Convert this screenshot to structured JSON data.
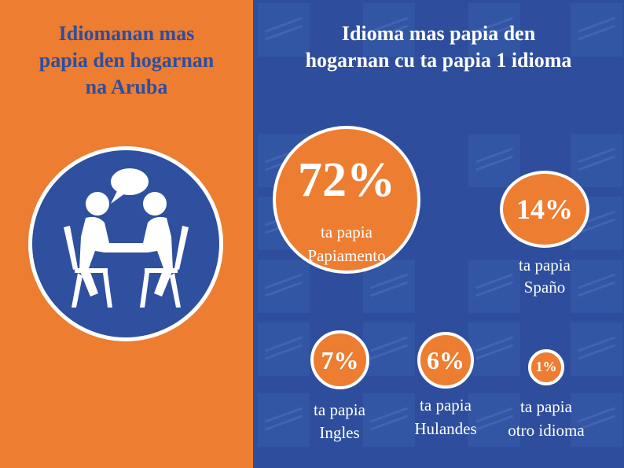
{
  "left": {
    "title_lines": [
      "Idiomanan mas",
      "papia den hogarnan",
      "na Aruba"
    ],
    "icon": "two-people-conversation-icon"
  },
  "right": {
    "title_lines": [
      "Idioma mas papia den",
      "hogarnan cu ta papia 1 idioma"
    ]
  },
  "colors": {
    "orange": "#ED7D31",
    "blue": "#2E4E9D",
    "white": "#FFFFFF"
  },
  "chart_data": {
    "type": "bubble",
    "title": "Idioma mas papia den hogarnan cu ta papia 1 idioma",
    "unit": "%",
    "items": [
      {
        "label": "72%",
        "value": 72,
        "caption_line1": "ta papia",
        "caption_line2": "Papiamento"
      },
      {
        "label": "14%",
        "value": 14,
        "caption_line1": "ta papia",
        "caption_line2": "Spaño"
      },
      {
        "label": "7%",
        "value": 7,
        "caption_line1": "ta papia",
        "caption_line2": "Ingles"
      },
      {
        "label": "6%",
        "value": 6,
        "caption_line1": "ta papia",
        "caption_line2": "Hulandes"
      },
      {
        "label": "1%",
        "value": 1,
        "caption_line1": "ta papia",
        "caption_line2": "otro idioma"
      }
    ]
  }
}
